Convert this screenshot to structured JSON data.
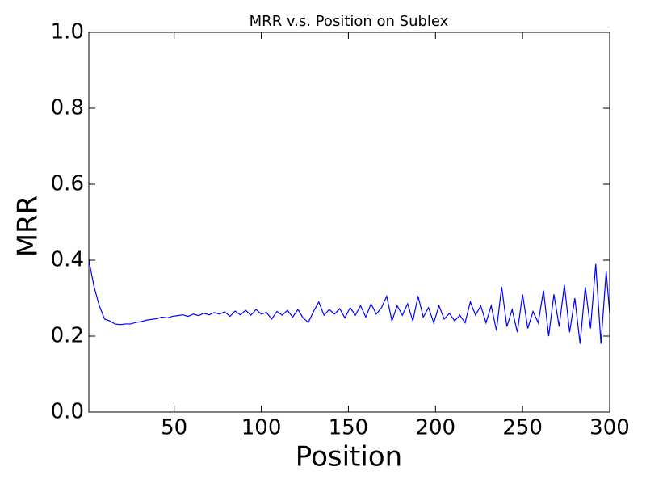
{
  "chart_data": {
    "type": "line",
    "title": "MRR v.s. Position on Sublex",
    "x_label": "Position",
    "y_label": "MRR",
    "x": [
      1,
      4,
      7,
      10,
      13,
      16,
      19,
      22,
      25,
      28,
      31,
      34,
      37,
      40,
      43,
      46,
      49,
      52,
      55,
      58,
      61,
      64,
      67,
      70,
      73,
      76,
      79,
      82,
      85,
      88,
      91,
      94,
      97,
      100,
      103,
      106,
      109,
      112,
      115,
      118,
      121,
      124,
      127,
      130,
      133,
      136,
      139,
      142,
      145,
      148,
      151,
      154,
      157,
      160,
      163,
      166,
      169,
      172,
      175,
      178,
      181,
      184,
      187,
      190,
      193,
      196,
      199,
      202,
      205,
      208,
      211,
      214,
      217,
      220,
      223,
      226,
      229,
      232,
      235,
      238,
      241,
      244,
      247,
      250,
      253,
      256,
      259,
      262,
      265,
      268,
      271,
      274,
      277,
      280,
      283,
      286,
      289,
      292,
      295,
      298,
      300
    ],
    "series": [
      {
        "color": "#0000ff",
        "values": [
          0.4,
          0.33,
          0.28,
          0.245,
          0.24,
          0.232,
          0.23,
          0.232,
          0.232,
          0.236,
          0.238,
          0.242,
          0.244,
          0.246,
          0.25,
          0.248,
          0.252,
          0.254,
          0.256,
          0.252,
          0.258,
          0.254,
          0.26,
          0.256,
          0.262,
          0.258,
          0.264,
          0.252,
          0.266,
          0.256,
          0.268,
          0.255,
          0.27,
          0.258,
          0.262,
          0.245,
          0.265,
          0.255,
          0.268,
          0.25,
          0.27,
          0.248,
          0.236,
          0.265,
          0.29,
          0.255,
          0.27,
          0.258,
          0.272,
          0.248,
          0.275,
          0.255,
          0.28,
          0.25,
          0.285,
          0.258,
          0.275,
          0.305,
          0.24,
          0.28,
          0.255,
          0.285,
          0.24,
          0.305,
          0.25,
          0.275,
          0.235,
          0.28,
          0.245,
          0.26,
          0.24,
          0.255,
          0.235,
          0.29,
          0.255,
          0.28,
          0.235,
          0.28,
          0.215,
          0.33,
          0.225,
          0.27,
          0.21,
          0.31,
          0.22,
          0.265,
          0.235,
          0.32,
          0.2,
          0.31,
          0.225,
          0.335,
          0.21,
          0.3,
          0.18,
          0.33,
          0.22,
          0.39,
          0.18,
          0.37,
          0.26
        ]
      }
    ],
    "xlim": [
      1,
      300
    ],
    "ylim": [
      0,
      1
    ],
    "xticks": [
      50,
      100,
      150,
      200,
      250,
      300
    ],
    "yticks": [
      {
        "value": 0,
        "label": "0.0"
      },
      0.2,
      0.4,
      0.6,
      0.8,
      {
        "value": 1,
        "label": "1.0"
      }
    ]
  }
}
